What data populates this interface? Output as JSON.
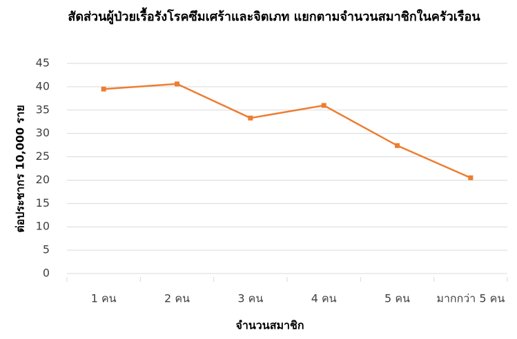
{
  "chart_data": {
    "type": "line",
    "title": "สัดส่วนผู้ป่วยเรื้อรังโรคซึมเศร้าและจิตเภท แยกตามจำนวนสมาชิกในครัวเรือน",
    "x_label": "จำนวนสมาชิก",
    "y_label": "ต่อประชากร 10,000 ราย",
    "categories": [
      "1 คน",
      "2 คน",
      "3 คน",
      "4 คน",
      "5 คน",
      "มากกว่า 5 คน"
    ],
    "series": [
      {
        "name": "ผู้ป่วยเรื้อรังโรคซึมเศร้าและจิตเภท",
        "color": "#ED7D31",
        "values": [
          39.5,
          40.6,
          33.3,
          36,
          27.4,
          20.5
        ]
      }
    ],
    "ylim": [
      0,
      45
    ],
    "yticks": [
      0,
      5,
      10,
      15,
      20,
      25,
      30,
      35,
      40,
      45
    ],
    "grid": true
  }
}
